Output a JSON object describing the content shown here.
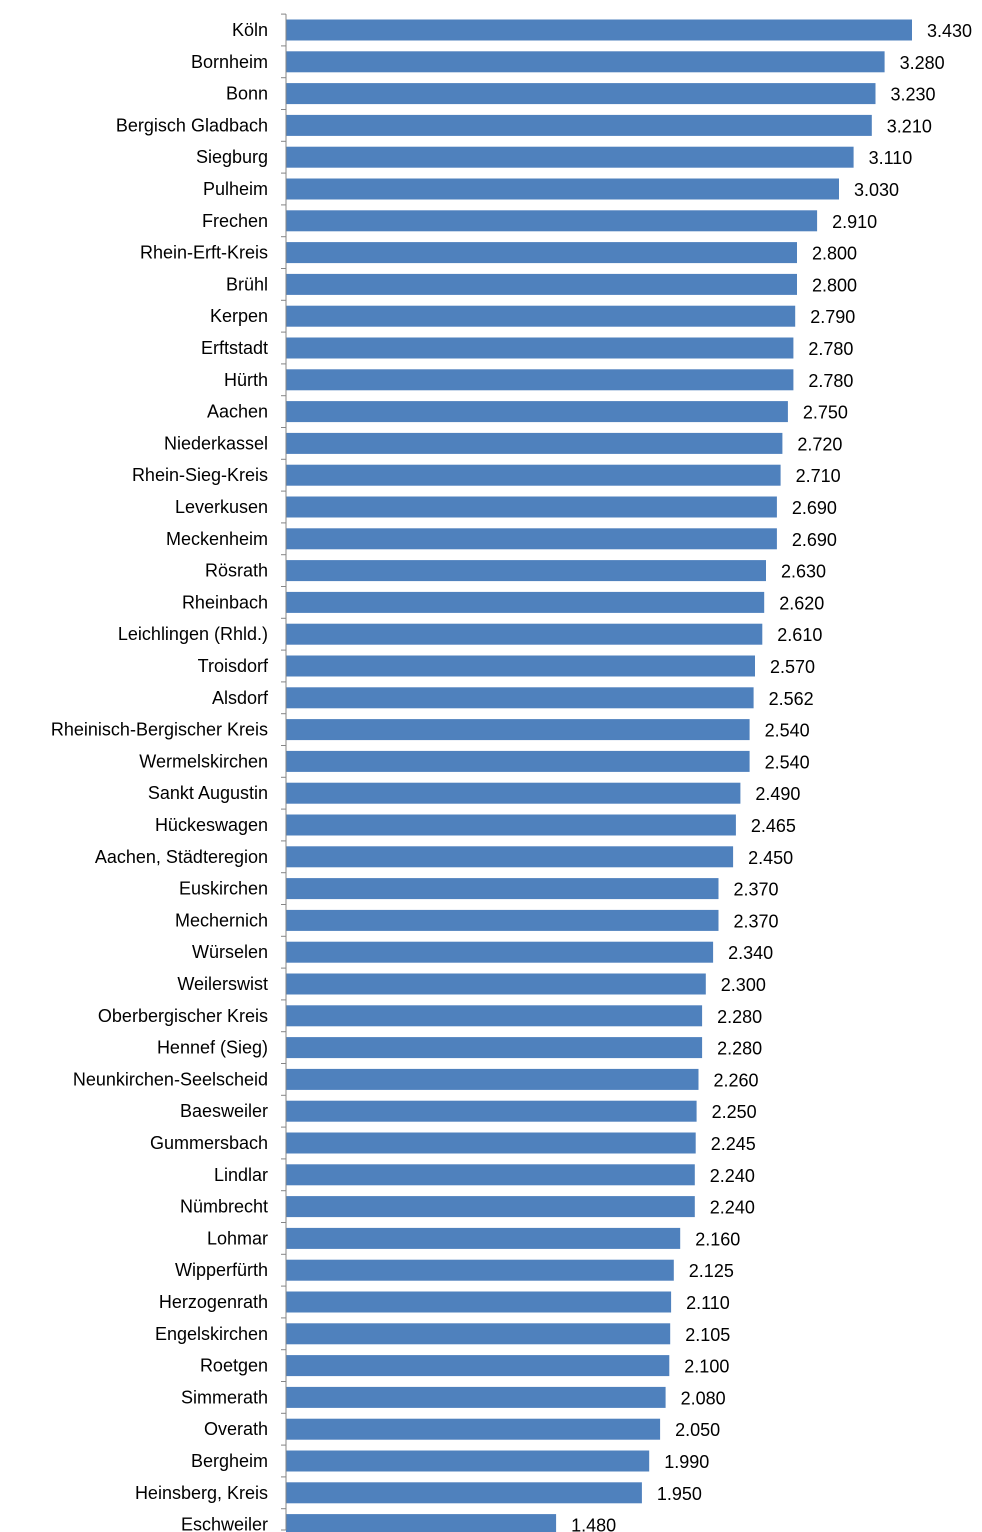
{
  "chart_data": {
    "type": "bar",
    "orientation": "horizontal",
    "title": "",
    "xlabel": "",
    "ylabel": "",
    "bar_color": "#4F81BD",
    "xlim": [
      0,
      3.43
    ],
    "grid": false,
    "legend": "none",
    "categories": [
      "Köln",
      "Bornheim",
      "Bonn",
      "Bergisch Gladbach",
      "Siegburg",
      "Pulheim",
      "Frechen",
      "Rhein-Erft-Kreis",
      "Brühl",
      "Kerpen",
      "Erftstadt",
      "Hürth",
      "Aachen",
      "Niederkassel",
      "Rhein-Sieg-Kreis",
      "Leverkusen",
      "Meckenheim",
      "Rösrath",
      "Rheinbach",
      "Leichlingen (Rhld.)",
      "Troisdorf",
      "Alsdorf",
      "Rheinisch-Bergischer Kreis",
      "Wermelskirchen",
      "Sankt Augustin",
      "Hückeswagen",
      "Aachen, Städteregion",
      "Euskirchen",
      "Mechernich",
      "Würselen",
      "Weilerswist",
      "Oberbergischer Kreis",
      "Hennef (Sieg)",
      "Neunkirchen-Seelscheid",
      "Baesweiler",
      "Gummersbach",
      "Lindlar",
      "Nümbrecht",
      "Lohmar",
      "Wipperfürth",
      "Herzogenrath",
      "Engelskirchen",
      "Roetgen",
      "Simmerath",
      "Overath",
      "Bergheim",
      "Heinsberg, Kreis",
      "Eschweiler"
    ],
    "values": [
      3.43,
      3.28,
      3.23,
      3.21,
      3.11,
      3.03,
      2.91,
      2.8,
      2.8,
      2.79,
      2.78,
      2.78,
      2.75,
      2.72,
      2.71,
      2.69,
      2.69,
      2.63,
      2.62,
      2.61,
      2.57,
      2.562,
      2.54,
      2.54,
      2.49,
      2.465,
      2.45,
      2.37,
      2.37,
      2.34,
      2.3,
      2.28,
      2.28,
      2.26,
      2.25,
      2.245,
      2.24,
      2.24,
      2.16,
      2.125,
      2.11,
      2.105,
      2.1,
      2.08,
      2.05,
      1.99,
      1.95,
      1.48
    ],
    "value_labels": [
      "3.430",
      "3.280",
      "3.230",
      "3.210",
      "3.110",
      "3.030",
      "2.910",
      "2.800",
      "2.800",
      "2.790",
      "2.780",
      "2.780",
      "2.750",
      "2.720",
      "2.710",
      "2.690",
      "2.690",
      "2.630",
      "2.620",
      "2.610",
      "2.570",
      "2.562",
      "2.540",
      "2.540",
      "2.490",
      "2.465",
      "2.450",
      "2.370",
      "2.370",
      "2.340",
      "2.300",
      "2.280",
      "2.280",
      "2.260",
      "2.250",
      "2.245",
      "2.240",
      "2.240",
      "2.160",
      "2.125",
      "2.110",
      "2.105",
      "2.100",
      "2.080",
      "2.050",
      "1.990",
      "1.950",
      "1.480"
    ]
  }
}
